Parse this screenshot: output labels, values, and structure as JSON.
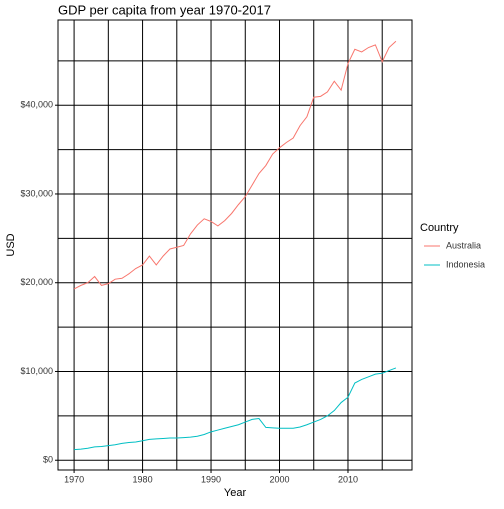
{
  "chart_data": {
    "type": "line",
    "title": "GDP per capita from year 1970-2017",
    "x_label": "Year",
    "y_label": "USD",
    "legend_title": "Country",
    "legend_position": "right",
    "x": [
      1970,
      1971,
      1972,
      1973,
      1974,
      1975,
      1976,
      1977,
      1978,
      1979,
      1980,
      1981,
      1982,
      1983,
      1984,
      1985,
      1986,
      1987,
      1988,
      1989,
      1990,
      1991,
      1992,
      1993,
      1994,
      1995,
      1996,
      1997,
      1998,
      1999,
      2000,
      2001,
      2002,
      2003,
      2004,
      2005,
      2006,
      2007,
      2008,
      2009,
      2010,
      2011,
      2012,
      2013,
      2014,
      2015,
      2016,
      2017
    ],
    "series": [
      {
        "name": "Australia",
        "color": "#F8766D",
        "values": [
          19300,
          19700,
          20000,
          20700,
          19700,
          19900,
          20400,
          20500,
          21000,
          21600,
          22000,
          23000,
          22000,
          23000,
          23800,
          24000,
          24200,
          25500,
          26500,
          27200,
          26900,
          26400,
          27000,
          27800,
          28800,
          29700,
          31000,
          32300,
          33200,
          34500,
          35200,
          35800,
          36300,
          37700,
          38700,
          40900,
          41000,
          41500,
          42700,
          41700,
          44700,
          46300,
          46000,
          46500,
          46800,
          44900,
          46500,
          47200
        ]
      },
      {
        "name": "Indonesia",
        "color": "#00BFC4",
        "values": [
          1200,
          1250,
          1350,
          1500,
          1550,
          1650,
          1750,
          1900,
          2000,
          2050,
          2200,
          2350,
          2400,
          2450,
          2500,
          2500,
          2550,
          2600,
          2700,
          2900,
          3200,
          3400,
          3600,
          3800,
          4000,
          4300,
          4600,
          4700,
          3700,
          3650,
          3600,
          3600,
          3600,
          3750,
          4000,
          4300,
          4600,
          5000,
          5600,
          6500,
          7100,
          8700,
          9100,
          9400,
          9700,
          9800,
          10100,
          10400
        ]
      }
    ],
    "xlim": [
      1967.65,
      2019.35
    ],
    "xticks": [
      1970,
      1980,
      1990,
      2000,
      2010
    ],
    "x_minor_ticks": [
      1975,
      1985,
      1995,
      2005,
      2015
    ],
    "ylim": [
      -1100,
      49600
    ],
    "yticks": [
      {
        "value": 0,
        "label": "$0"
      },
      {
        "value": 10000,
        "label": "$10,000"
      },
      {
        "value": 20000,
        "label": "$20,000"
      },
      {
        "value": 30000,
        "label": "$30,000"
      },
      {
        "value": 40000,
        "label": "$40,000"
      }
    ],
    "y_minor_ticks": [
      5000,
      15000,
      25000,
      35000,
      45000
    ],
    "grid": true
  }
}
